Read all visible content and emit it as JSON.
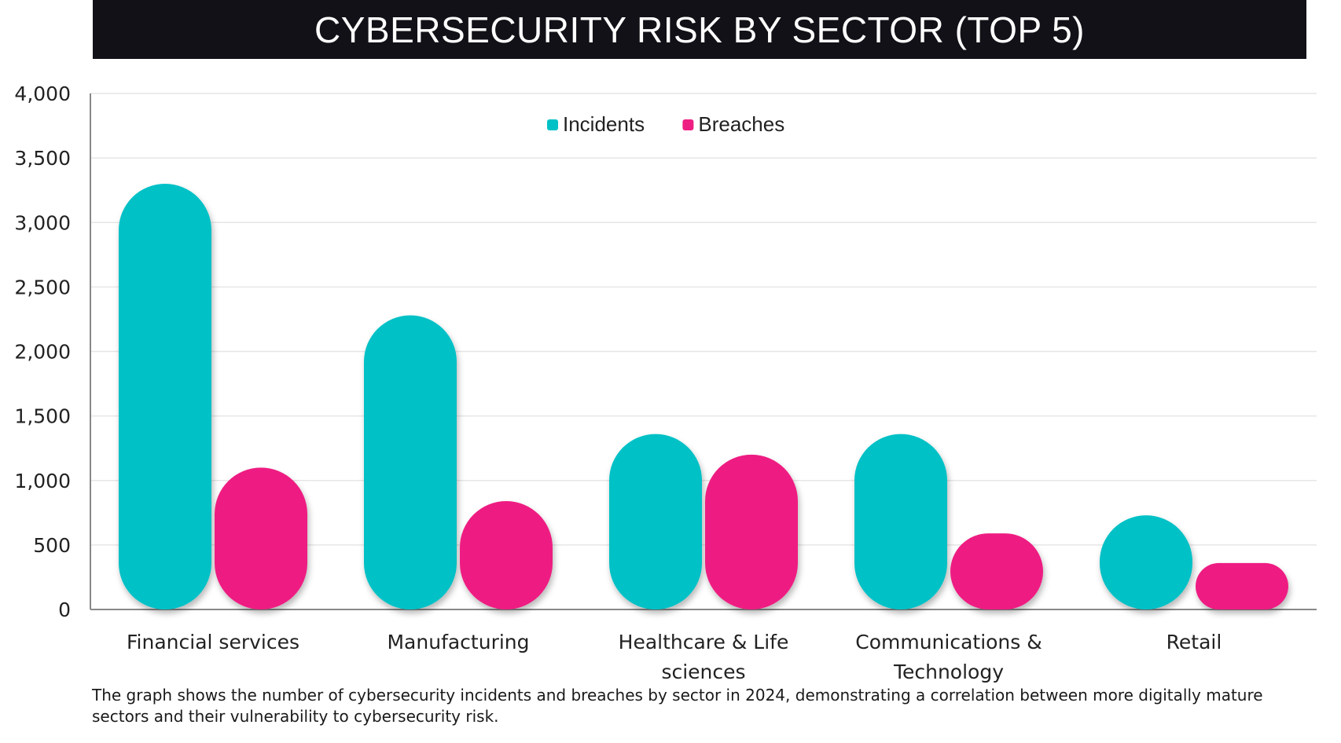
{
  "chart_data": {
    "type": "bar",
    "title": "CYBERSECURITY RISK BY SECTOR (TOP 5)",
    "categories": [
      "Financial services",
      "Manufacturing",
      "Healthcare & Life sciences",
      "Communications & Technology",
      "Retail"
    ],
    "series": [
      {
        "name": "Incidents",
        "color": "#00C1C6",
        "values": [
          3300,
          2280,
          1360,
          1360,
          730
        ]
      },
      {
        "name": "Breaches",
        "color": "#EE1F82",
        "values": [
          1100,
          840,
          1200,
          590,
          360
        ]
      }
    ],
    "y_ticks": [
      "0",
      "500",
      "1,000",
      "1,500",
      "2,000",
      "2,500",
      "3,000",
      "3,500",
      "4,000"
    ],
    "ylim": [
      0,
      4000
    ],
    "grid": true,
    "legend_position": "top-center",
    "xlabel": "",
    "ylabel": ""
  },
  "caption": "The graph shows the number of cybersecurity incidents and breaches by sector in 2024, demonstrating a correlation between more digitally mature sectors and their vulnerability to cybersecurity risk."
}
